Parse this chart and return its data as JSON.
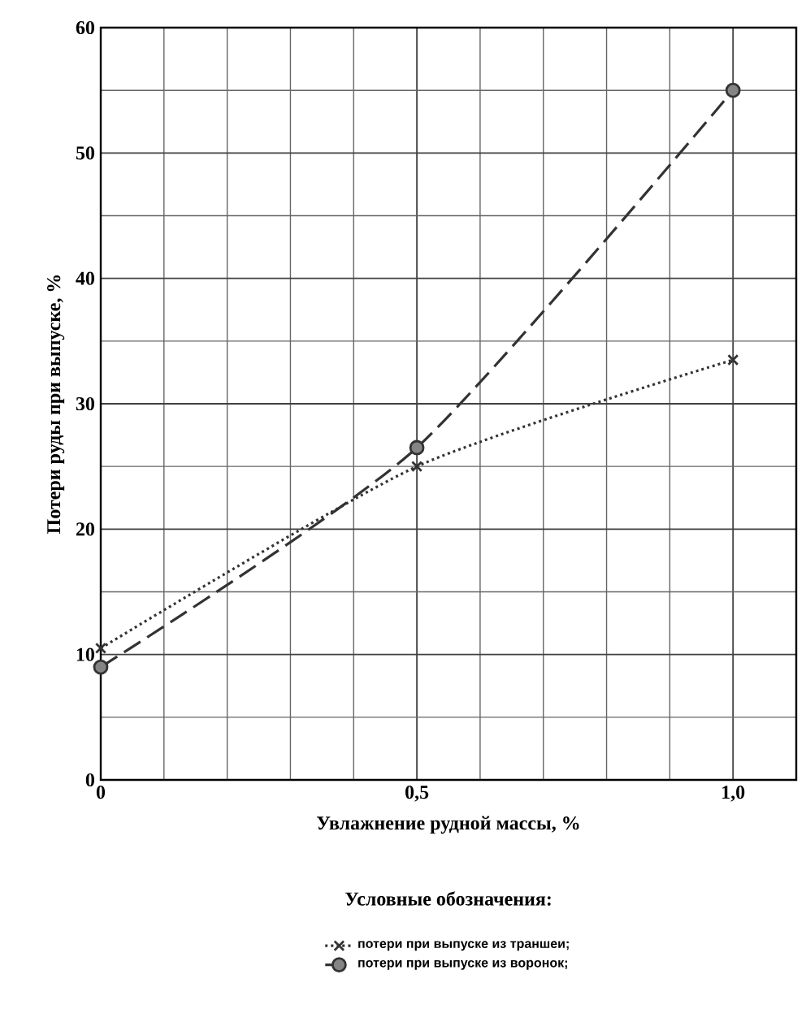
{
  "chart_data": {
    "type": "line",
    "xlabel": "Увлажнение рудной массы, %",
    "ylabel": "Потери  руды при выпуске, %",
    "legend_title": "Условные обозначения:",
    "x": [
      0,
      0.5,
      1.0
    ],
    "series": [
      {
        "name": "потери при выпуске из траншеи;",
        "color": "#333333",
        "values": [
          10.5,
          25,
          33.5
        ],
        "marker": "cross",
        "line_style": "dotted"
      },
      {
        "name": "потери при выпуске из воронок;",
        "color": "#333333",
        "values": [
          9,
          26.5,
          55
        ],
        "marker": "circle",
        "line_style": "dashed"
      }
    ],
    "xlim": [
      0,
      1.1
    ],
    "ylim": [
      0,
      60
    ],
    "xticks": [
      0,
      {
        "value": 0.5,
        "label": "0,5"
      },
      {
        "value": 1.0,
        "label": "1,0"
      }
    ],
    "yticks": [
      0,
      10,
      20,
      30,
      40,
      50,
      60
    ],
    "grid": true,
    "legend": "bottom"
  }
}
